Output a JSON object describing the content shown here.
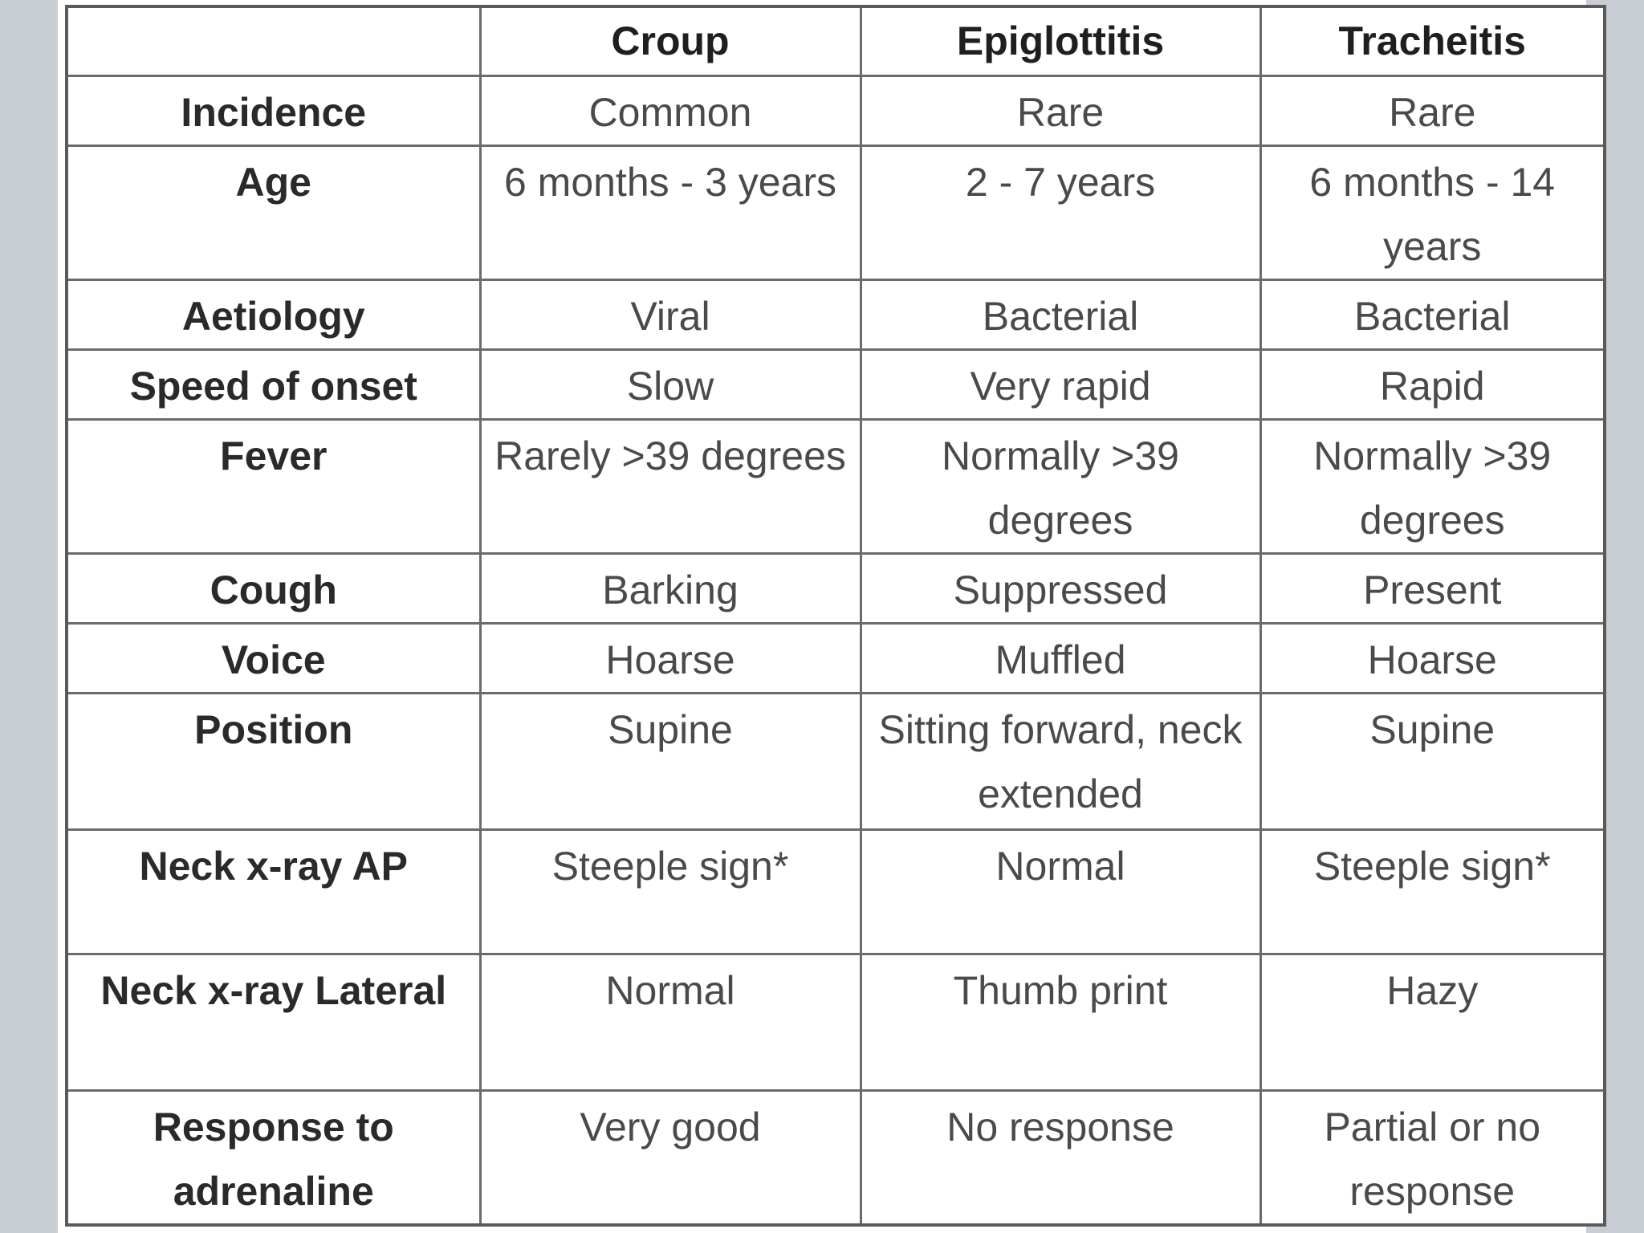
{
  "table": {
    "columns": [
      "",
      "Croup",
      "Epiglottitis",
      "Tracheitis"
    ],
    "rows": [
      {
        "label": "Incidence",
        "cells": [
          "Common",
          "Rare",
          "Rare"
        ]
      },
      {
        "label": "Age",
        "cells": [
          "6 months - 3 years",
          "2 - 7 years",
          "6 months - 14 years"
        ]
      },
      {
        "label": "Aetiology",
        "cells": [
          "Viral",
          "Bacterial",
          "Bacterial"
        ]
      },
      {
        "label": "Speed of onset",
        "cells": [
          "Slow",
          "Very rapid",
          "Rapid"
        ]
      },
      {
        "label": "Fever",
        "cells": [
          "Rarely >39 degrees",
          "Normally >39 degrees",
          "Normally >39 degrees"
        ]
      },
      {
        "label": "Cough",
        "cells": [
          "Barking",
          "Suppressed",
          "Present"
        ]
      },
      {
        "label": "Voice",
        "cells": [
          "Hoarse",
          "Muffled",
          "Hoarse"
        ]
      },
      {
        "label": "Position",
        "cells": [
          "Supine",
          "Sitting forward, neck extended",
          "Supine"
        ]
      },
      {
        "label": "Neck x-ray AP",
        "cells": [
          "Steeple sign*",
          "Normal",
          "Steeple sign*"
        ]
      },
      {
        "label": "Neck x-ray Lateral",
        "cells": [
          "Normal",
          "Thumb print",
          "Hazy"
        ]
      },
      {
        "label": "Response to adrenaline",
        "cells": [
          "Very good",
          "No response",
          "Partial or no response"
        ]
      }
    ]
  }
}
